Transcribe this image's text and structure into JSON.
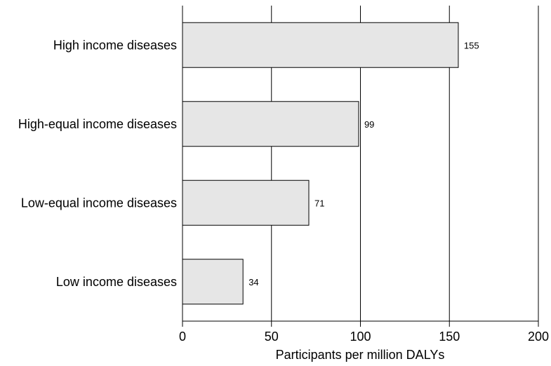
{
  "chart_data": {
    "type": "bar",
    "orientation": "horizontal",
    "categories": [
      "High income diseases",
      "High-equal income diseases",
      "Low-equal income diseases",
      "Low income diseases"
    ],
    "values": [
      155,
      99,
      71,
      34
    ],
    "data_labels": [
      "155",
      "99",
      "71",
      "34"
    ],
    "xlabel": "Participants per million DALYs",
    "ylabel": "",
    "title": "",
    "xlim": [
      0,
      200
    ],
    "xticks": [
      0,
      50,
      100,
      150,
      200
    ],
    "xtick_labels": [
      "0",
      "50",
      "100",
      "150",
      "200"
    ],
    "grid": "vertical",
    "legend": "none",
    "colors": {
      "bar_fill": "#e6e6e6",
      "bar_stroke": "#000000",
      "grid": "#000000"
    }
  }
}
